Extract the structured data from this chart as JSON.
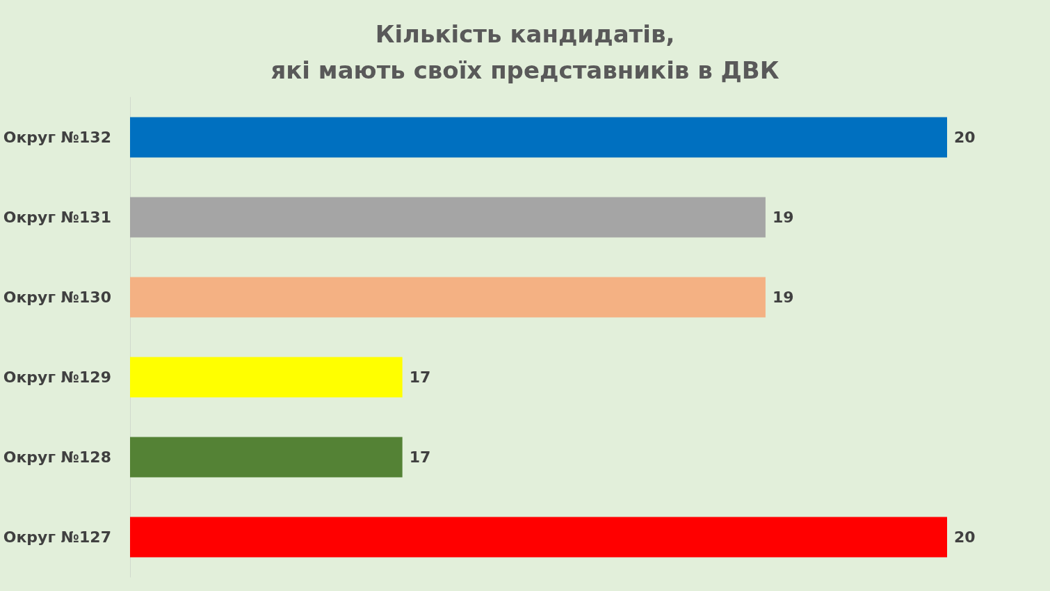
{
  "chart_data": {
    "type": "bar",
    "orientation": "horizontal",
    "title": "Кількість кандидатів,\nякі мають своїх представників в ДВК",
    "categories": [
      "Округ №132",
      "Округ №131",
      "Округ №130",
      "Округ №129",
      "Округ №128",
      "Округ №127"
    ],
    "values": [
      20,
      19,
      19,
      17,
      17,
      20
    ],
    "colors": [
      "#0070c0",
      "#a5a5a5",
      "#f4b183",
      "#ffff00",
      "#548235",
      "#ff0000"
    ],
    "xlim": [
      15.5,
      20
    ],
    "data_labels": true,
    "grid": false
  }
}
